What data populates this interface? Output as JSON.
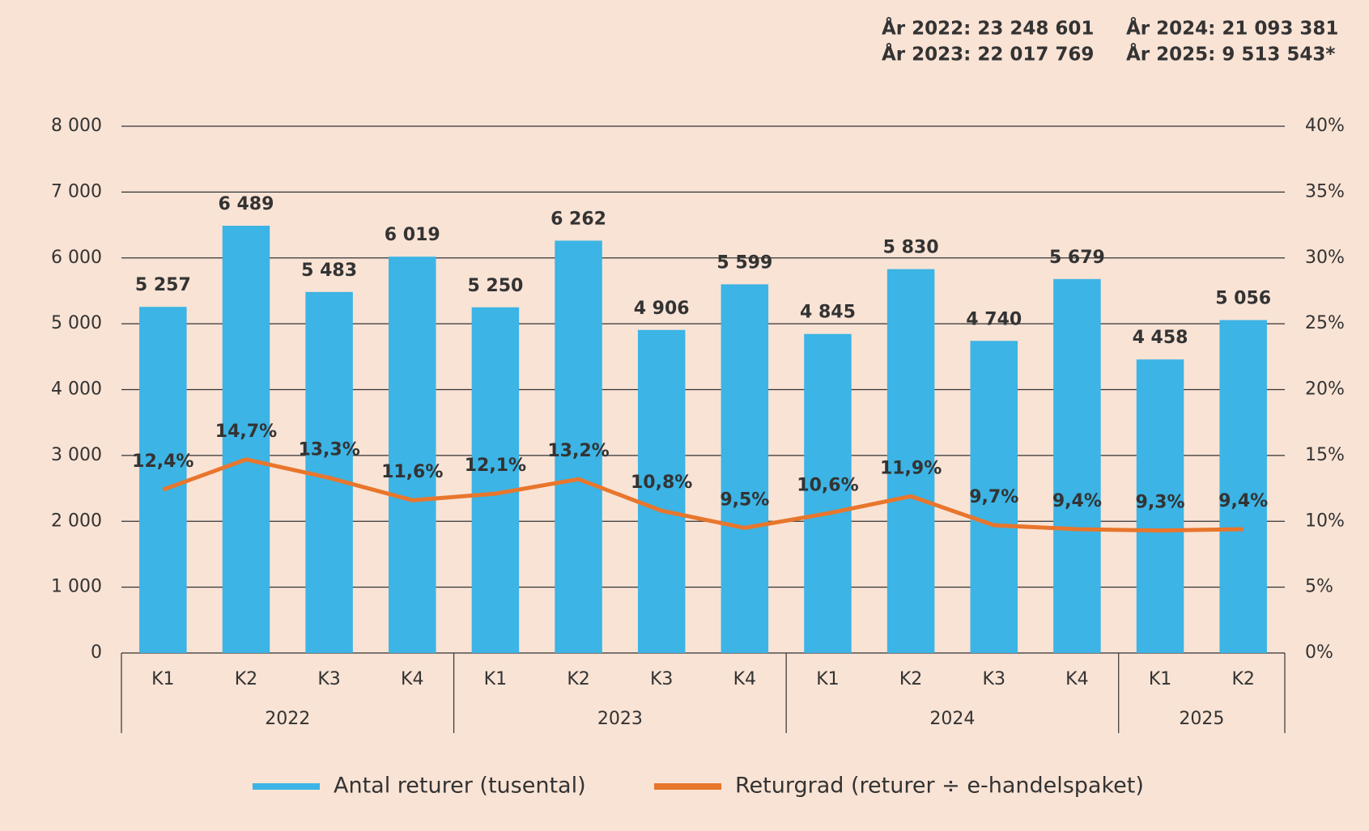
{
  "chart_data": {
    "type": "bar_line",
    "annotations": [
      "År 2022: 23 248 601",
      "År 2023: 22 017 769",
      "År 2024: 21 093 381",
      "År 2025: 9 513 543*"
    ],
    "groups": [
      {
        "label": "2022",
        "categories": [
          "K1",
          "K2",
          "K3",
          "K4"
        ]
      },
      {
        "label": "2023",
        "categories": [
          "K1",
          "K2",
          "K3",
          "K4"
        ]
      },
      {
        "label": "2024",
        "categories": [
          "K1",
          "K2",
          "K3",
          "K4"
        ]
      },
      {
        "label": "2025",
        "categories": [
          "K1",
          "K2"
        ]
      }
    ],
    "series": [
      {
        "name": "Antal returer (tusental)",
        "color": "#3cb4e5",
        "type": "bar",
        "values": [
          5257,
          6489,
          5483,
          6019,
          5250,
          6262,
          4906,
          5599,
          4845,
          5830,
          4740,
          5679,
          4458,
          5056
        ],
        "value_labels": [
          "5 257",
          "6 489",
          "5 483",
          "6 019",
          "5 250",
          "6 262",
          "4 906",
          "5 599",
          "4 845",
          "5 830",
          "4 740",
          "5 679",
          "4 458",
          "5 056"
        ]
      },
      {
        "name": "Returgrad (returer ÷ e-handelspaket)",
        "color": "#e8762c",
        "type": "line",
        "axis": "y2",
        "values": [
          12.4,
          14.7,
          13.3,
          11.6,
          12.1,
          13.2,
          10.8,
          9.5,
          10.6,
          11.9,
          9.7,
          9.4,
          9.3,
          9.4
        ],
        "value_labels": [
          "12,4%",
          "14,7%",
          "13,3%",
          "11,6%",
          "12,1%",
          "13,2%",
          "10,8%",
          "9,5%",
          "10,6%",
          "11,9%",
          "9,7%",
          "9,4%",
          "9,3%",
          "9,4%"
        ]
      }
    ],
    "ylim": [
      0,
      8000
    ],
    "yticks": [
      0,
      {
        "value": 1000,
        "label": "1 000"
      },
      {
        "value": 2000,
        "label": "2 000"
      },
      {
        "value": 3000,
        "label": "3 000"
      },
      {
        "value": 4000,
        "label": "4 000"
      },
      {
        "value": 5000,
        "label": "5 000"
      },
      {
        "value": 6000,
        "label": "6 000"
      },
      {
        "value": 7000,
        "label": "7 000"
      },
      {
        "value": 8000,
        "label": "8 000"
      }
    ],
    "y2lim": [
      0,
      40
    ],
    "y2ticks": [
      {
        "value": 0,
        "label": "0%"
      },
      {
        "value": 5,
        "label": "5%"
      },
      {
        "value": 10,
        "label": "10%"
      },
      {
        "value": 15,
        "label": "15%"
      },
      {
        "value": 20,
        "label": "20%"
      },
      {
        "value": 25,
        "label": "25%"
      },
      {
        "value": 30,
        "label": "30%"
      },
      {
        "value": 35,
        "label": "35%"
      },
      {
        "value": 40,
        "label": "40%"
      }
    ],
    "grid": true
  }
}
